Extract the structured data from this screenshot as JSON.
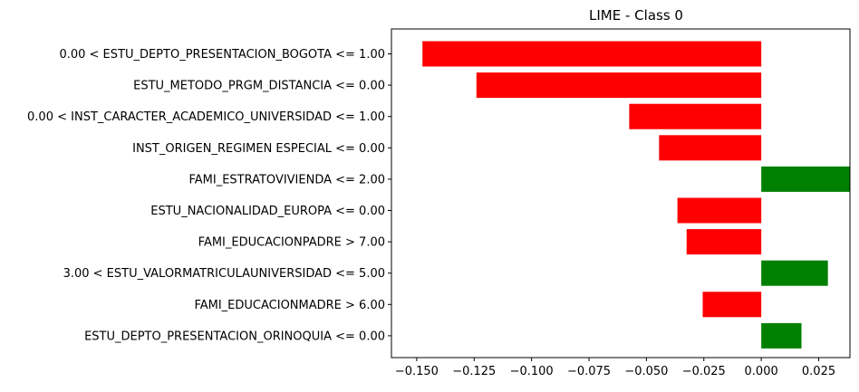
{
  "chart_data": {
    "type": "bar",
    "orientation": "horizontal",
    "title": "LIME - Class 0",
    "xlabel": "",
    "ylabel": "",
    "xlim": [
      -0.161,
      0.0386
    ],
    "x_ticks": [
      -0.15,
      -0.125,
      -0.1,
      -0.075,
      -0.05,
      -0.025,
      0.0,
      0.025
    ],
    "x_tick_labels": [
      "−0.150",
      "−0.125",
      "−0.100",
      "−0.075",
      "−0.050",
      "−0.025",
      "0.000",
      "0.025"
    ],
    "grid": false,
    "categories": [
      "0.00 < ESTU_DEPTO_PRESENTACION_BOGOTA <= 1.00",
      "ESTU_METODO_PRGM_DISTANCIA <= 0.00",
      "0.00 < INST_CARACTER_ACADEMICO_UNIVERSIDAD <= 1.00",
      "INST_ORIGEN_REGIMEN ESPECIAL <= 0.00",
      "FAMI_ESTRATOVIVIENDA <= 2.00",
      "ESTU_NACIONALIDAD_EUROPA <= 0.00",
      "FAMI_EDUCACIONPADRE > 7.00",
      "3.00 < ESTU_VALORMATRICULAUNIVERSIDAD <= 5.00",
      "FAMI_EDUCACIONMADRE > 6.00",
      "ESTU_DEPTO_PRESENTACION_ORINOQUIA <= 0.00"
    ],
    "values": [
      -0.1475,
      -0.124,
      -0.0575,
      -0.0445,
      0.0385,
      -0.0365,
      -0.0325,
      0.029,
      -0.0255,
      0.0175
    ],
    "colors": {
      "positive": "#008000",
      "negative": "#ff0000"
    }
  }
}
